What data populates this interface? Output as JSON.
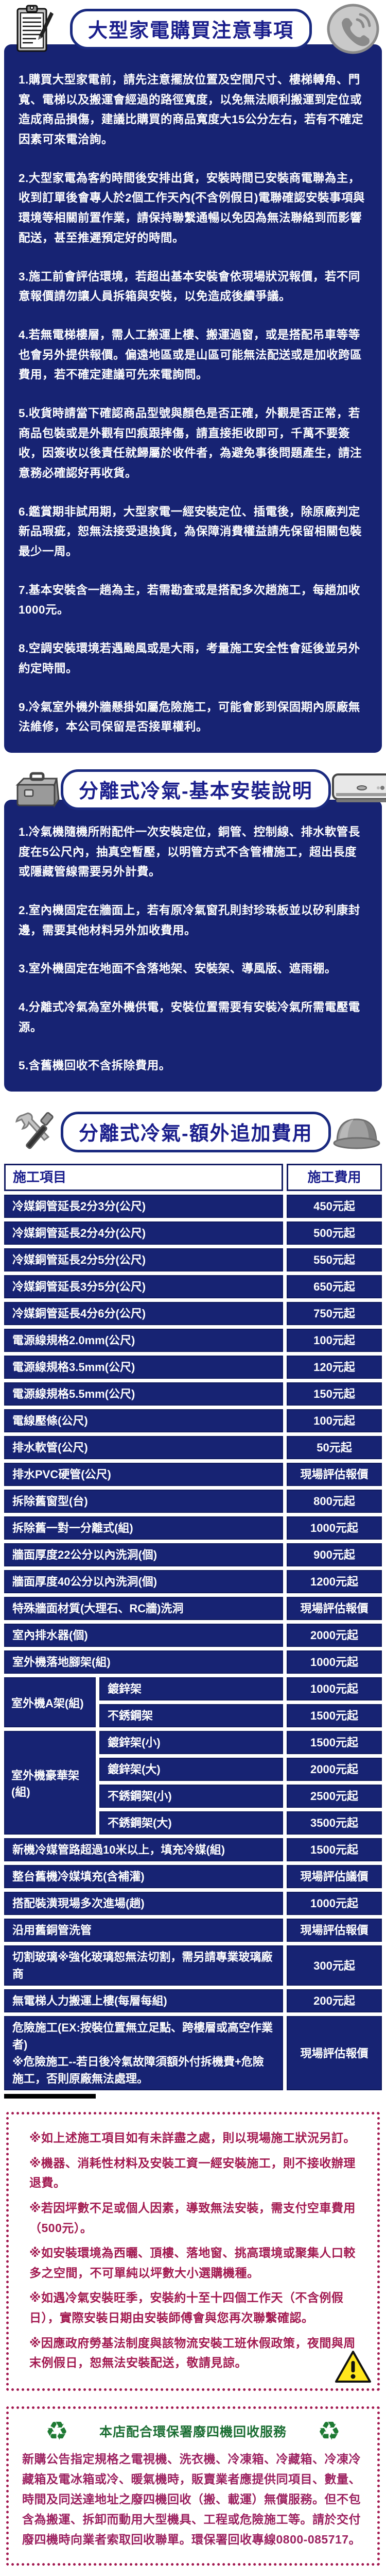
{
  "colors": {
    "navy_box": "#172373",
    "navy_text": "#1a1e8c",
    "note_red": "#a21950",
    "footer_green": "#1b6e33",
    "footer_maroon": "#9c2160"
  },
  "icons": {
    "section1_left": "clipboard-icon",
    "section1_right": "phone-icon",
    "section2_left": "toolbox-icon",
    "section2_right": "air-conditioner-icon",
    "section3_left": "hammer-wrench-icon",
    "section3_right": "safety-helmet-icon",
    "notes_corner": "warning-triangle-icon",
    "footer": "recycle-icon",
    "recycle_glyph": "♻"
  },
  "section1": {
    "title": "大型家電購買注意事項",
    "items": [
      "1.購買大型家電前，請先注意擺放位置及空間尺寸、樓梯轉角、門寬、電梯以及搬運會經過的路徑寬度，以免無法順利搬運到定位或造成商品損傷，建議比購買的商品寬度大15公分左右，若有不確定因素可來電洽詢。",
      "2.大型家電為客約時間後安排出貨，安裝時間已安裝商電聯為主，收到訂單後會專人於2個工作天內(不含例假日)電聯確認安裝事項與環境等相關前置作業，請保持聯繫通暢以免因為無法聯絡到而影響配送，甚至推遲預定好的時間。",
      "3.施工前會評估環境，若超出基本安裝會依現場狀況報價，若不同意報價請勿讓人員拆箱與安裝，以免造成後續爭議。",
      "4.若無電梯樓層，需人工搬運上樓、搬運過窗，或是搭配吊車等等也會另外提供報價。偏遠地區或是山區可能無法配送或是加收跨區費用，若不確定建議可先來電詢問。",
      "5.收貨時請當下確認商品型號與顏色是否正確，外觀是否正常，若商品包裝或是外觀有凹痕跟摔傷，請直接拒收即可，千萬不要簽收，因簽收以後責任就歸屬於收件者，為避免事後問題產生，請注意務必確認好再收貨。",
      "6.鑑賞期非試用期，大型家電一經安裝定位、插電後，除原廠判定新品瑕疵，恕無法接受退換貨，為保障消費權益請先保留相關包裝最少一周。",
      "7.基本安裝含一趟為主，若需勘查或是搭配多次趟施工，每趟加收1000元。",
      "8.空調安裝環境若遇颱風或是大雨，考量施工安全性會延後並另外約定時間。",
      "9.冷氣室外機外牆懸掛如屬危險施工，可能會影到保固期內原廠無法維修，本公司保留是否接單權利。"
    ]
  },
  "section2": {
    "title": "分離式冷氣-基本安裝說明",
    "items": [
      "1.冷氣機隨機所附配件一次安裝定位，銅管、控制線、排水軟管長度在5公尺內，抽真空暫壓，以明管方式不含管槽施工，超出長度或隱藏管線需要另外計費。",
      "2.室內機固定在牆面上，若有原冷氣窗孔則封珍珠板並以矽利康封邊，需要其他材料另外加收費用。",
      "3.室外機固定在地面不含落地架、安裝架、導風版、遮雨棚。",
      "4.分離式冷氣為室外機供電，安裝位置需要有安裝冷氣所需電壓電源。",
      "5.含舊機回收不含拆除費用。"
    ]
  },
  "section3": {
    "title": "分離式冷氣-額外追加費用",
    "table": {
      "col_item": "施工項目",
      "col_fee": "施工費用",
      "rows": [
        {
          "item": "冷媒銅管延長2分3分(公尺)",
          "fee": "450元起"
        },
        {
          "item": "冷媒銅管延長2分4分(公尺)",
          "fee": "500元起"
        },
        {
          "item": "冷媒銅管延長2分5分(公尺)",
          "fee": "550元起"
        },
        {
          "item": "冷媒銅管延長3分5分(公尺)",
          "fee": "650元起"
        },
        {
          "item": "冷媒銅管延長4分6分(公尺)",
          "fee": "750元起"
        },
        {
          "item": "電源線規格2.0mm(公尺)",
          "fee": "100元起"
        },
        {
          "item": "電源線規格3.5mm(公尺)",
          "fee": "120元起"
        },
        {
          "item": "電源線規格5.5mm(公尺)",
          "fee": "150元起"
        },
        {
          "item": "電線壓條(公尺)",
          "fee": "100元起"
        },
        {
          "item": "排水軟管(公尺)",
          "fee": "50元起"
        },
        {
          "item": "排水PVC硬管(公尺)",
          "fee": "現場評估報價"
        },
        {
          "item": "拆除舊窗型(台)",
          "fee": "800元起"
        },
        {
          "item": "拆除舊一對一分離式(組)",
          "fee": "1000元起"
        },
        {
          "item": "牆面厚度22公分以內洗洞(個)",
          "fee": "900元起"
        },
        {
          "item": "牆面厚度40公分以內洗洞(個)",
          "fee": "1200元起"
        },
        {
          "item": "特殊牆面材質(大理石、RC牆)洗洞",
          "fee": "現場評估報價"
        },
        {
          "item": "室內排水器(個)",
          "fee": "2000元起"
        },
        {
          "item": "室外機落地腳架(組)",
          "fee": "1000元起"
        },
        {
          "item": "室外機A架(組)",
          "subrows": [
            {
              "item": "鍍鋅架",
              "fee": "1000元起"
            },
            {
              "item": "不銹鋼架",
              "fee": "1500元起"
            }
          ]
        },
        {
          "item": "室外機豪華架(組)",
          "subrows": [
            {
              "item": "鍍鋅架(小)",
              "fee": "1500元起"
            },
            {
              "item": "鍍鋅架(大)",
              "fee": "2000元起"
            },
            {
              "item": "不銹鋼架(小)",
              "fee": "2500元起"
            },
            {
              "item": "不銹鋼架(大)",
              "fee": "3500元起"
            }
          ]
        },
        {
          "item": "新機冷媒管路超過10米以上，填充冷媒(組)",
          "fee": "1500元起"
        },
        {
          "item": "整台舊機冷媒填充(含補灌)",
          "fee": "現場評估議價"
        },
        {
          "item": "搭配裝潢現場多次進場(趟)",
          "fee": "1000元起"
        },
        {
          "item": "沿用舊銅管洗管",
          "fee": "現場評估報價"
        },
        {
          "item": "切割玻璃※強化玻璃恕無法切割，需另請專業玻璃廠商",
          "fee": "300元起"
        },
        {
          "item": "無電梯人力搬運上樓(每層每組)",
          "fee": "200元起"
        },
        {
          "item": "危險施工(EX:按裝位置無立足點、跨樓層或高空作業者)\n※危險施工--若日後冷氣故障須額外付拆機費+危險施工，否則原廠無法處理。",
          "fee": "現場評估報價"
        }
      ]
    }
  },
  "notes": {
    "items": [
      "※如上述施工項目如有未詳盡之處，則以現場施工狀況另訂。",
      "※機器、消耗性材料及安裝工資一經安裝施工，則不接收辦理退費。",
      "※若因坪數不足或個人因素，導致無法安裝，需支付空車費用（500元）。",
      "※如安裝環境為西曬、頂樓、落地窗、挑高環境或聚集人口較多之空間，不可單純以坪數大小選購機種。",
      "※如遇冷氣安裝旺季，安裝約十至十四個工作天（不含例假日），實際安裝日期由安裝師傅會與您再次聯繫確認。",
      "※因應政府勞基法制度與該物流安裝工班休假政策，夜間與周末例假日，恕無法安裝配送，敬請見諒。"
    ]
  },
  "footer": {
    "title": "本店配合環保署廢四機回收服務",
    "body": "新購公告指定規格之電視機、洗衣機、冷凍箱、冷藏箱、冷凍冷藏箱及電冰箱或冷、暖氣機時，販賣業者應提供同項目、數量、時間及同送達地址之廢四機回收（搬、載運）無償服務。但不包含為搬運、拆卸而動用大型機具、工程或危險施工等。請於交付廢四機時向業者索取回收聯單。環保署回收專線0800-085717。"
  }
}
